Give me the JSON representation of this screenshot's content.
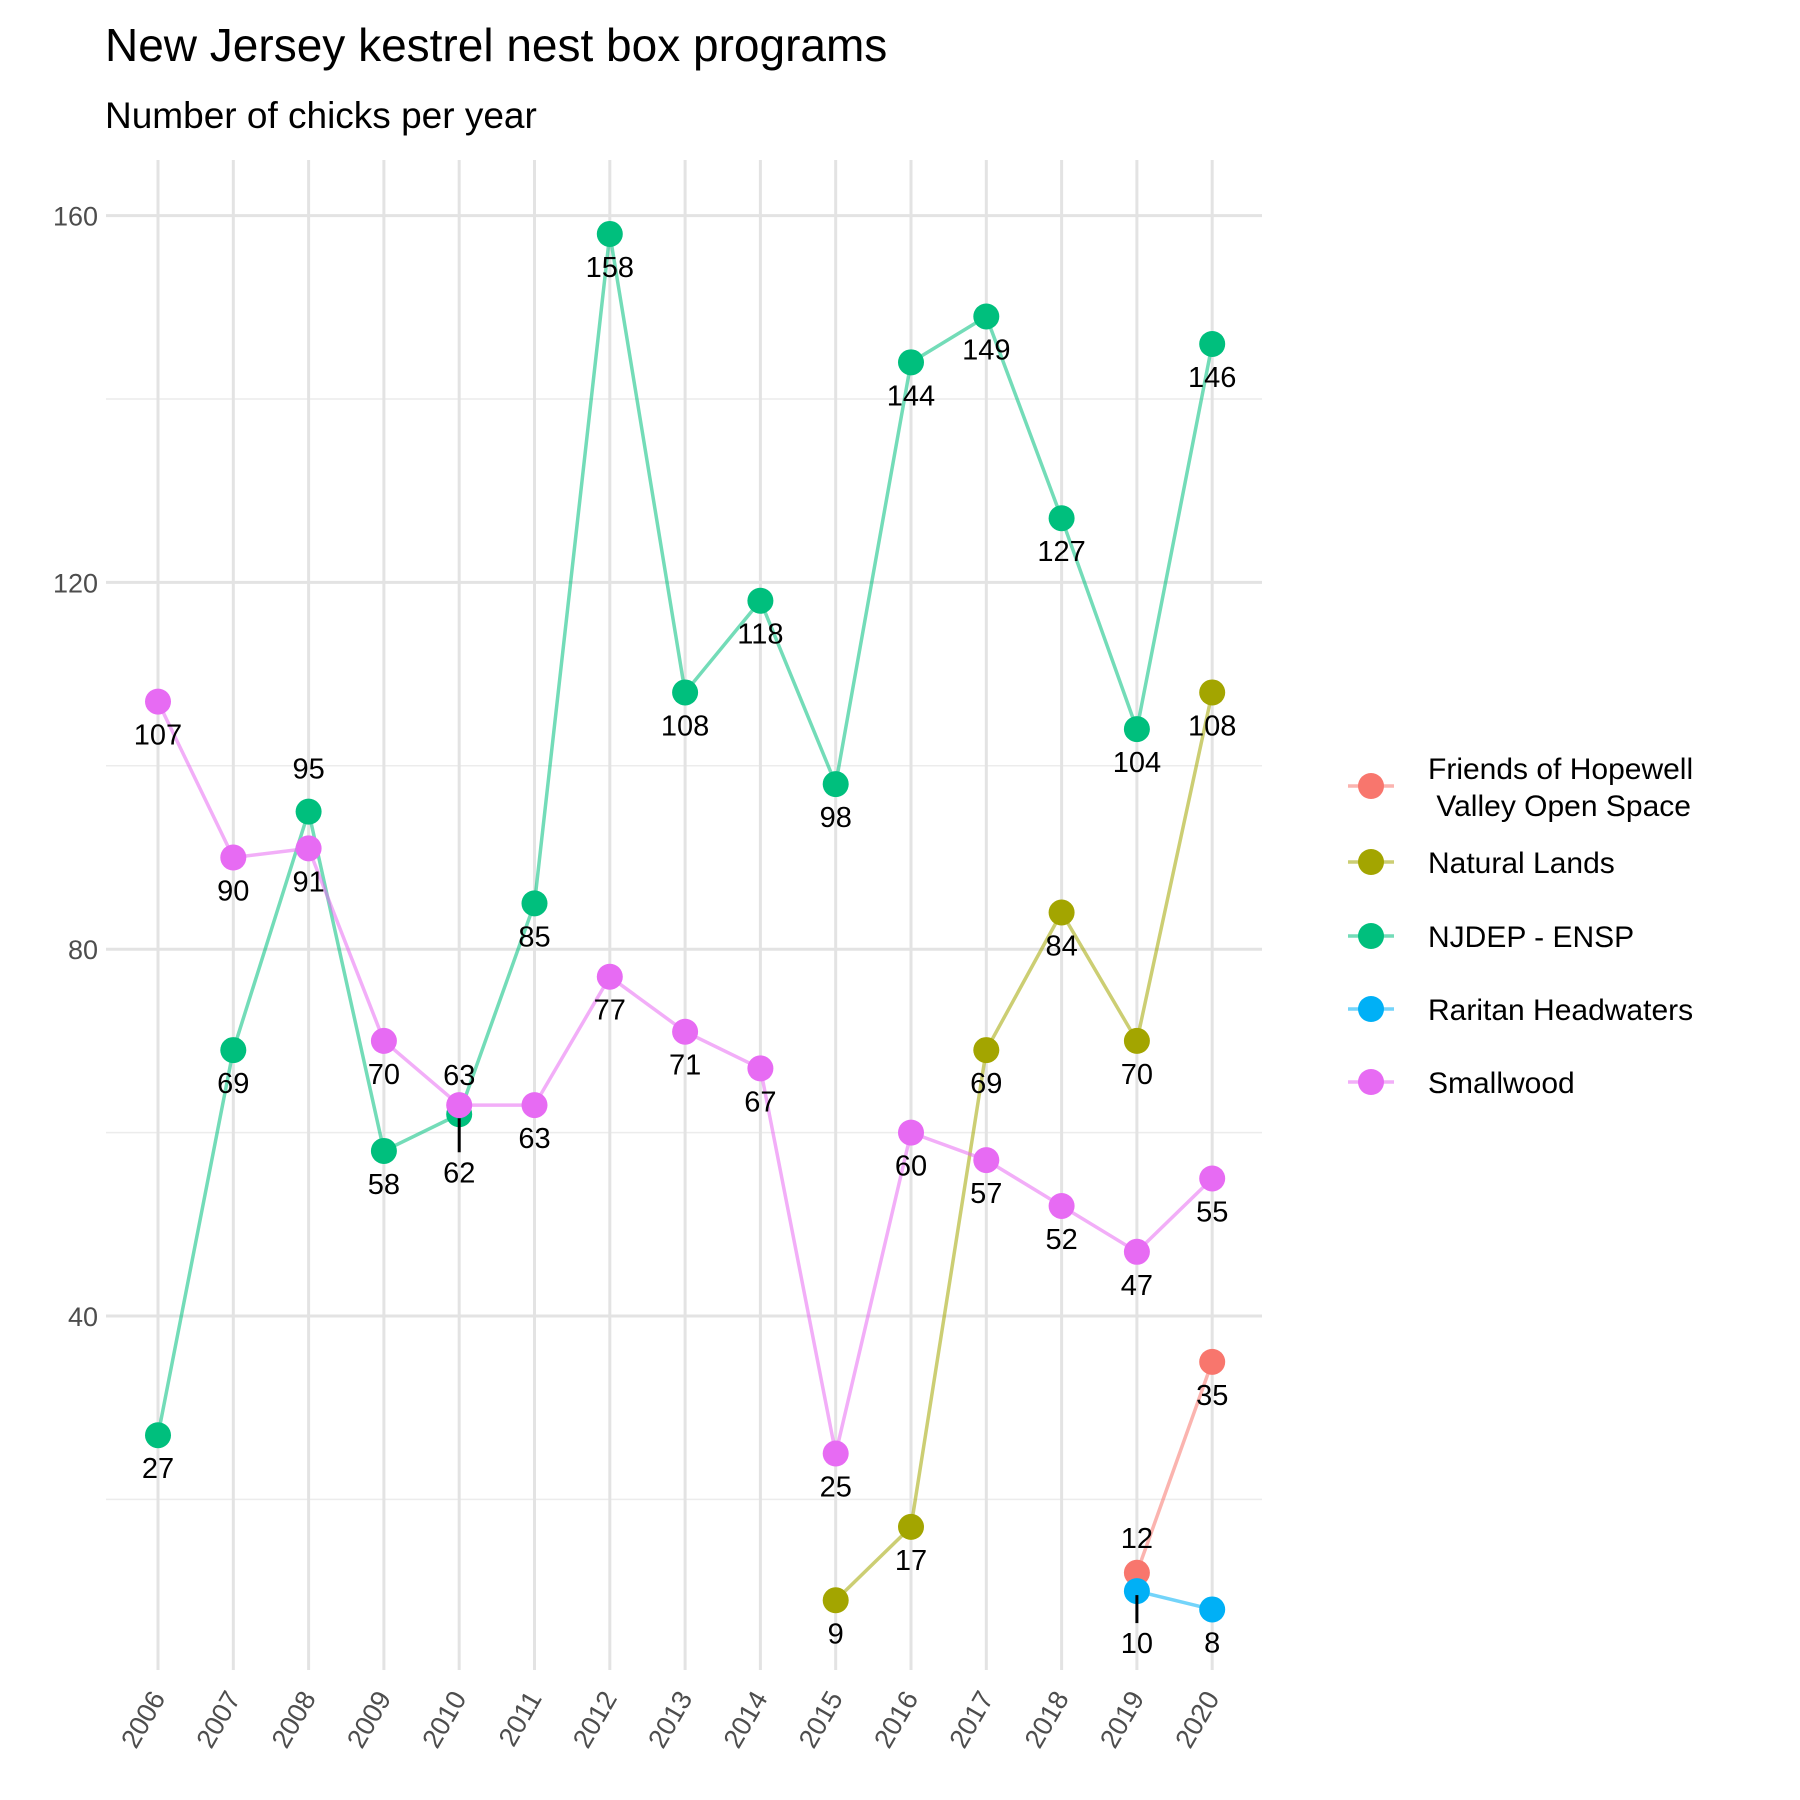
{
  "chart_data": {
    "type": "line",
    "title": "New Jersey kestrel nest box programs",
    "subtitle": "Number of chicks per year",
    "xlabel": "",
    "ylabel": "",
    "x": [
      "2006",
      "2007",
      "2008",
      "2009",
      "2010",
      "2011",
      "2012",
      "2013",
      "2014",
      "2015",
      "2016",
      "2017",
      "2018",
      "2019",
      "2020"
    ],
    "ylim": [
      -1,
      165
    ],
    "yticks": [
      40,
      80,
      120,
      160
    ],
    "grid": true,
    "legend_position": "right",
    "series": [
      {
        "name": "Friends of Hopewell\n Valley Open Space",
        "color": "#F8766D",
        "values": [
          null,
          null,
          null,
          null,
          null,
          null,
          null,
          null,
          null,
          null,
          null,
          null,
          null,
          12,
          35
        ]
      },
      {
        "name": "Natural Lands",
        "color": "#A3A500",
        "values": [
          null,
          null,
          null,
          null,
          null,
          null,
          null,
          null,
          null,
          9,
          17,
          69,
          84,
          70,
          108
        ]
      },
      {
        "name": "NJDEP - ENSP",
        "color": "#00BF7D",
        "values": [
          27,
          69,
          95,
          58,
          62,
          85,
          158,
          108,
          118,
          98,
          144,
          149,
          127,
          104,
          146
        ]
      },
      {
        "name": "Raritan Headwaters",
        "color": "#00B0F6",
        "values": [
          null,
          null,
          null,
          null,
          null,
          null,
          null,
          null,
          null,
          null,
          null,
          null,
          null,
          10,
          8
        ]
      },
      {
        "name": "Smallwood",
        "color": "#E76BF3",
        "values": [
          107,
          90,
          91,
          70,
          63,
          63,
          77,
          71,
          67,
          25,
          60,
          57,
          52,
          47,
          55
        ]
      }
    ]
  }
}
